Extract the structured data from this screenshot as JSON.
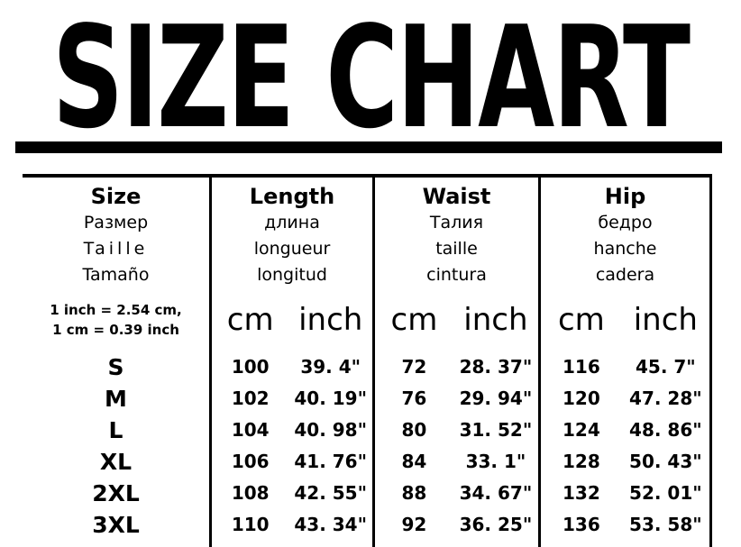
{
  "title": "SIZE CHART",
  "conversion_note": {
    "line1": "1 inch = 2.54 cm,",
    "line2": "1 cm = 0.39 inch"
  },
  "units": {
    "cm": "cm",
    "inch": "inch"
  },
  "columns": {
    "size": {
      "en": "Size",
      "ru": "Размер",
      "fr": "Taille",
      "es": "Tamaño"
    },
    "length": {
      "en": "Length",
      "ru": "длина",
      "fr": "longueur",
      "es": "longitud"
    },
    "waist": {
      "en": "Waist",
      "ru": "Талия",
      "fr": "taille",
      "es": "cintura"
    },
    "hip": {
      "en": "Hip",
      "ru": "бедро",
      "fr": "hanche",
      "es": "cadera"
    }
  },
  "rows": [
    {
      "size": "S",
      "length_cm": "100",
      "length_inch": "39. 4\"",
      "waist_cm": "72",
      "waist_inch": "28. 37\"",
      "hip_cm": "116",
      "hip_inch": "45. 7\""
    },
    {
      "size": "M",
      "length_cm": "102",
      "length_inch": "40. 19\"",
      "waist_cm": "76",
      "waist_inch": "29. 94\"",
      "hip_cm": "120",
      "hip_inch": "47. 28\""
    },
    {
      "size": "L",
      "length_cm": "104",
      "length_inch": "40. 98\"",
      "waist_cm": "80",
      "waist_inch": "31. 52\"",
      "hip_cm": "124",
      "hip_inch": "48. 86\""
    },
    {
      "size": "XL",
      "length_cm": "106",
      "length_inch": "41. 76\"",
      "waist_cm": "84",
      "waist_inch": "33. 1\"",
      "hip_cm": "128",
      "hip_inch": "50. 43\""
    },
    {
      "size": "2XL",
      "length_cm": "108",
      "length_inch": "42. 55\"",
      "waist_cm": "88",
      "waist_inch": "34. 67\"",
      "hip_cm": "132",
      "hip_inch": "52. 01\""
    },
    {
      "size": "3XL",
      "length_cm": "110",
      "length_inch": "43. 34\"",
      "waist_cm": "92",
      "waist_inch": "36. 25\"",
      "hip_cm": "136",
      "hip_inch": "53. 58\""
    }
  ]
}
